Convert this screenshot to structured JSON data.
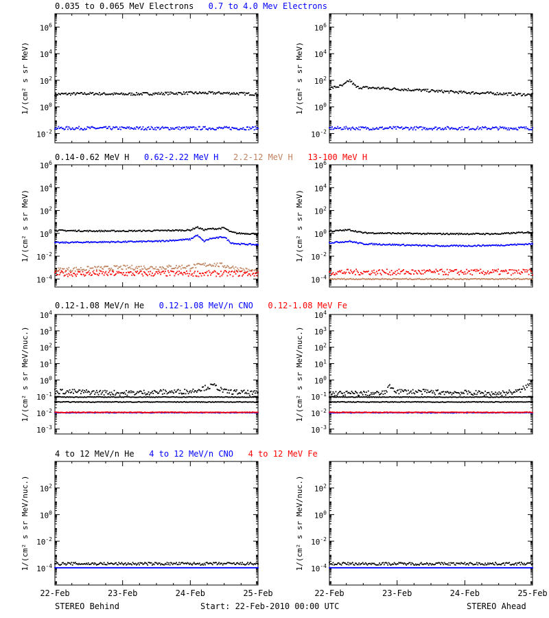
{
  "colors": {
    "black": "#000000",
    "blue": "#0000ff",
    "tan": "#c0825e",
    "red": "#ff0000"
  },
  "footer": {
    "left": "STEREO Behind",
    "center": "Start: 22-Feb-2010 00:00 UTC",
    "right": "STEREO Ahead"
  },
  "chart_data": [
    {
      "type": "scatter",
      "spacecraft": "STEREO Behind",
      "legend": [
        {
          "text": "0.035 to 0.065 MeV Electrons",
          "color": "#000000"
        },
        {
          "text": "0.7 to 4.0 Mev Electrons",
          "color": "#0000ff"
        }
      ],
      "ylabel": "1/(cm² s sr MeV)",
      "yscale": "log",
      "ylim": [
        0.002,
        10000000
      ],
      "yticks": [
        {
          "v": 0.01,
          "m": "10",
          "e": "-2"
        },
        {
          "v": 1,
          "m": "10",
          "e": "0"
        },
        {
          "v": 100,
          "m": "10",
          "e": "2"
        },
        {
          "v": 10000,
          "m": "10",
          "e": "4"
        },
        {
          "v": 1000000,
          "m": "10",
          "e": "6"
        }
      ],
      "xlim": [
        0,
        3
      ],
      "xticks": [
        0,
        1,
        2,
        3
      ],
      "series": [
        {
          "color": "#000000",
          "x": [
            0,
            0.5,
            1,
            1.5,
            2,
            2.5,
            3
          ],
          "y": [
            9,
            10,
            9,
            10,
            11,
            11,
            9
          ],
          "spread": 0.1
        },
        {
          "color": "#0000ff",
          "x": [
            0,
            3
          ],
          "y": [
            0.025,
            0.025
          ],
          "spread": 0.12
        }
      ]
    },
    {
      "type": "scatter",
      "spacecraft": "STEREO Ahead",
      "legend": [],
      "ylabel": "1/(cm² s sr MeV)",
      "yscale": "log",
      "ylim": [
        0.002,
        10000000
      ],
      "yticks": [
        {
          "v": 0.01,
          "m": "10",
          "e": "-2"
        },
        {
          "v": 1,
          "m": "10",
          "e": "0"
        },
        {
          "v": 100,
          "m": "10",
          "e": "2"
        },
        {
          "v": 10000,
          "m": "10",
          "e": "4"
        },
        {
          "v": 1000000,
          "m": "10",
          "e": "6"
        }
      ],
      "xlim": [
        0,
        3
      ],
      "xticks": [
        0,
        1,
        2,
        3
      ],
      "series": [
        {
          "color": "#000000",
          "x": [
            0,
            0.2,
            0.3,
            0.4,
            1,
            1.5,
            2,
            2.5,
            3
          ],
          "y": [
            25,
            40,
            100,
            30,
            22,
            16,
            12,
            10,
            8
          ],
          "spread": 0.1
        },
        {
          "color": "#0000ff",
          "x": [
            0,
            3
          ],
          "y": [
            0.025,
            0.025
          ],
          "spread": 0.12
        }
      ]
    },
    {
      "type": "scatter",
      "spacecraft": "STEREO Behind",
      "legend": [
        {
          "text": "0.14-0.62 MeV H",
          "color": "#000000"
        },
        {
          "text": "0.62-2.22 MeV H",
          "color": "#0000ff"
        },
        {
          "text": "2.2-12 MeV H",
          "color": "#c0825e"
        },
        {
          "text": "13-100 MeV H",
          "color": "#ff0000"
        }
      ],
      "ylabel": "1/(cm² s sr MeV)",
      "yscale": "log",
      "ylim": [
        2e-05,
        1000000
      ],
      "yticks": [
        {
          "v": 0.0001,
          "m": "10",
          "e": "-4"
        },
        {
          "v": 0.01,
          "m": "10",
          "e": "-2"
        },
        {
          "v": 1,
          "m": "10",
          "e": "0"
        },
        {
          "v": 100,
          "m": "10",
          "e": "2"
        },
        {
          "v": 10000,
          "m": "10",
          "e": "4"
        },
        {
          "v": 1000000,
          "m": "10",
          "e": "6"
        }
      ],
      "xlim": [
        0,
        3
      ],
      "xticks": [
        0,
        1,
        2,
        3
      ],
      "series": [
        {
          "color": "#000000",
          "x": [
            0,
            0.5,
            1,
            1.5,
            2.0,
            2.1,
            2.2,
            2.3,
            2.4,
            2.5,
            2.6,
            2.7,
            3
          ],
          "y": [
            1.8,
            1.6,
            1.6,
            1.7,
            1.9,
            3.5,
            2.0,
            2.5,
            2.5,
            3.0,
            1.3,
            1.0,
            0.9
          ],
          "spread": 0.06
        },
        {
          "color": "#0000ff",
          "x": [
            0,
            0.5,
            1,
            1.5,
            2.0,
            2.1,
            2.2,
            2.3,
            2.4,
            2.5,
            2.6,
            2.7,
            3
          ],
          "y": [
            0.15,
            0.17,
            0.18,
            0.2,
            0.3,
            0.7,
            0.2,
            0.35,
            0.4,
            0.5,
            0.15,
            0.12,
            0.1
          ],
          "spread": 0.06
        },
        {
          "color": "#c0825e",
          "x": [
            0,
            0.5,
            1,
            1.5,
            2,
            2.3,
            2.5,
            2.7,
            3
          ],
          "y": [
            0.0006,
            0.0008,
            0.001,
            0.001,
            0.0012,
            0.002,
            0.0015,
            0.0008,
            0.0004
          ],
          "spread": 0.2
        },
        {
          "color": "#ff0000",
          "x": [
            0,
            3
          ],
          "y": [
            0.0003,
            0.0003
          ],
          "spread": 0.25
        }
      ]
    },
    {
      "type": "scatter",
      "spacecraft": "STEREO Ahead",
      "legend": [],
      "ylabel": "1/(cm² s sr MeV)",
      "yscale": "log",
      "ylim": [
        2e-05,
        1000000
      ],
      "yticks": [
        {
          "v": 0.0001,
          "m": "10",
          "e": "-4"
        },
        {
          "v": 0.01,
          "m": "10",
          "e": "-2"
        },
        {
          "v": 1,
          "m": "10",
          "e": "0"
        },
        {
          "v": 100,
          "m": "10",
          "e": "2"
        },
        {
          "v": 10000,
          "m": "10",
          "e": "4"
        },
        {
          "v": 1000000,
          "m": "10",
          "e": "6"
        }
      ],
      "xlim": [
        0,
        3
      ],
      "xticks": [
        0,
        1,
        2,
        3
      ],
      "series": [
        {
          "color": "#000000",
          "x": [
            0,
            0.3,
            0.5,
            1,
            1.5,
            2,
            2.5,
            3
          ],
          "y": [
            1.5,
            2.0,
            1.1,
            1.0,
            0.9,
            0.9,
            0.9,
            1.3
          ],
          "spread": 0.06
        },
        {
          "color": "#0000ff",
          "x": [
            0,
            0.3,
            0.5,
            1,
            1.5,
            2,
            2.5,
            3
          ],
          "y": [
            0.15,
            0.2,
            0.12,
            0.1,
            0.08,
            0.08,
            0.09,
            0.12
          ],
          "spread": 0.06
        },
        {
          "color": "#ff0000",
          "x": [
            0,
            3
          ],
          "y": [
            0.0004,
            0.0004
          ],
          "spread": 0.25
        },
        {
          "color": "#c0825e",
          "x": [
            0,
            3
          ],
          "y": [
            0.0001,
            0.0001
          ],
          "spread": 0.05
        }
      ]
    },
    {
      "type": "scatter",
      "spacecraft": "STEREO Behind",
      "legend": [
        {
          "text": "0.12-1.08 MeV/n He",
          "color": "#000000"
        },
        {
          "text": "0.12-1.08 MeV/n CNO",
          "color": "#0000ff"
        },
        {
          "text": "0.12-1.08 MeV Fe",
          "color": "#ff0000"
        }
      ],
      "ylabel": "1/(cm² s sr MeV/nuc.)",
      "yscale": "log",
      "ylim": [
        0.0005,
        10000
      ],
      "yticks": [
        {
          "v": 0.001,
          "m": "10",
          "e": "-3"
        },
        {
          "v": 0.01,
          "m": "10",
          "e": "-2"
        },
        {
          "v": 0.1,
          "m": "10",
          "e": "-1"
        },
        {
          "v": 1,
          "m": "10",
          "e": "0"
        },
        {
          "v": 10,
          "m": "10",
          "e": "1"
        },
        {
          "v": 100,
          "m": "10",
          "e": "2"
        },
        {
          "v": 1000,
          "m": "10",
          "e": "3"
        },
        {
          "v": 10000,
          "m": "10",
          "e": "4"
        }
      ],
      "xlim": [
        0,
        3
      ],
      "xticks": [
        0,
        1,
        2,
        3
      ],
      "series": [
        {
          "color": "#000000",
          "x": [
            0,
            3
          ],
          "y": [
            0.045,
            0.045
          ],
          "spread": 0.02
        },
        {
          "color": "#000000",
          "x": [
            0,
            3
          ],
          "y": [
            0.09,
            0.09
          ],
          "spread": 0.02
        },
        {
          "color": "#000000",
          "x": [
            0,
            1,
            2,
            2.35,
            2.5,
            3
          ],
          "y": [
            0.2,
            0.16,
            0.2,
            0.45,
            0.2,
            0.15
          ],
          "spread": 0.15
        },
        {
          "color": "#0000ff",
          "x": [
            0,
            3
          ],
          "y": [
            0.01,
            0.01
          ],
          "spread": 0.02
        },
        {
          "color": "#ff0000",
          "x": [
            0,
            3
          ],
          "y": [
            0.0105,
            0.0105
          ],
          "spread": 0.02
        }
      ]
    },
    {
      "type": "scatter",
      "spacecraft": "STEREO Ahead",
      "legend": [],
      "ylabel": "1/(cm² s sr MeV/nuc.)",
      "yscale": "log",
      "ylim": [
        0.0005,
        10000
      ],
      "yticks": [
        {
          "v": 0.001,
          "m": "10",
          "e": "-3"
        },
        {
          "v": 0.01,
          "m": "10",
          "e": "-2"
        },
        {
          "v": 0.1,
          "m": "10",
          "e": "-1"
        },
        {
          "v": 1,
          "m": "10",
          "e": "0"
        },
        {
          "v": 10,
          "m": "10",
          "e": "1"
        },
        {
          "v": 100,
          "m": "10",
          "e": "2"
        },
        {
          "v": 1000,
          "m": "10",
          "e": "3"
        },
        {
          "v": 10000,
          "m": "10",
          "e": "4"
        }
      ],
      "xlim": [
        0,
        3
      ],
      "xticks": [
        0,
        1,
        2,
        3
      ],
      "series": [
        {
          "color": "#000000",
          "x": [
            0,
            3
          ],
          "y": [
            0.045,
            0.045
          ],
          "spread": 0.02
        },
        {
          "color": "#000000",
          "x": [
            0,
            3
          ],
          "y": [
            0.09,
            0.09
          ],
          "spread": 0.02
        },
        {
          "color": "#000000",
          "x": [
            0,
            0.8,
            0.9,
            1.0,
            2.5,
            2.8,
            2.95,
            3
          ],
          "y": [
            0.15,
            0.15,
            0.4,
            0.2,
            0.15,
            0.2,
            0.5,
            1.0
          ],
          "spread": 0.15
        },
        {
          "color": "#0000ff",
          "x": [
            0,
            3
          ],
          "y": [
            0.01,
            0.01
          ],
          "spread": 0.02
        },
        {
          "color": "#ff0000",
          "x": [
            0,
            3
          ],
          "y": [
            0.0105,
            0.0105
          ],
          "spread": 0.02
        }
      ]
    },
    {
      "type": "scatter",
      "spacecraft": "STEREO Behind",
      "legend": [
        {
          "text": "4 to 12 MeV/n He",
          "color": "#000000"
        },
        {
          "text": "4 to 12 MeV/n CNO",
          "color": "#0000ff"
        },
        {
          "text": "4 to 12 MeV Fe",
          "color": "#ff0000"
        }
      ],
      "ylabel": "1/(cm² s sr MeV/nuc.)",
      "yscale": "log",
      "ylim": [
        5e-06,
        10000
      ],
      "yticks": [
        {
          "v": 0.0001,
          "m": "10",
          "e": "-4"
        },
        {
          "v": 0.01,
          "m": "10",
          "e": "-2"
        },
        {
          "v": 1,
          "m": "10",
          "e": "0"
        },
        {
          "v": 100,
          "m": "10",
          "e": "2"
        }
      ],
      "xlim": [
        0,
        3
      ],
      "xticks": [
        0,
        1,
        2,
        3
      ],
      "xticklabels": [
        "22-Feb",
        "23-Feb",
        "24-Feb",
        "25-Feb"
      ],
      "series": [
        {
          "color": "#0000ff",
          "x": [
            0,
            3
          ],
          "y": [
            0.0001,
            0.0001
          ],
          "spread": 0.0
        },
        {
          "color": "#000000",
          "x": [
            0,
            3
          ],
          "y": [
            0.0002,
            0.0002
          ],
          "spread": 0.1
        }
      ]
    },
    {
      "type": "scatter",
      "spacecraft": "STEREO Ahead",
      "legend": [],
      "ylabel": "1/(cm² s sr MeV/nuc.)",
      "yscale": "log",
      "ylim": [
        5e-06,
        10000
      ],
      "yticks": [
        {
          "v": 0.0001,
          "m": "10",
          "e": "-4"
        },
        {
          "v": 0.01,
          "m": "10",
          "e": "-2"
        },
        {
          "v": 1,
          "m": "10",
          "e": "0"
        },
        {
          "v": 100,
          "m": "10",
          "e": "2"
        }
      ],
      "xlim": [
        0,
        3
      ],
      "xticks": [
        0,
        1,
        2,
        3
      ],
      "xticklabels": [
        "22-Feb",
        "23-Feb",
        "24-Feb",
        "25-Feb"
      ],
      "series": [
        {
          "color": "#0000ff",
          "x": [
            0,
            3
          ],
          "y": [
            0.0001,
            0.0001
          ],
          "spread": 0.0
        },
        {
          "color": "#000000",
          "x": [
            0,
            3
          ],
          "y": [
            0.0002,
            0.0002
          ],
          "spread": 0.1
        }
      ]
    }
  ]
}
